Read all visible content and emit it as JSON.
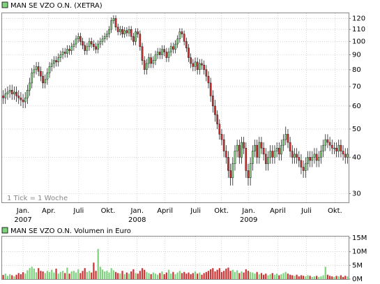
{
  "chart_data": [
    {
      "type": "candlestick",
      "title": "MAN SE VZO O.N. (XETRA)",
      "note": "1 Tick = 1 Woche",
      "open": [
        65,
        64,
        66,
        67,
        68,
        66,
        67,
        65,
        64,
        63,
        62,
        64,
        68,
        72,
        78,
        80,
        82,
        79,
        76,
        72,
        74,
        78,
        82,
        84,
        86,
        85,
        88,
        90,
        92,
        91,
        94,
        93,
        96,
        98,
        102,
        104,
        100,
        97,
        93,
        96,
        100,
        98,
        96,
        94,
        98,
        100,
        102,
        104,
        106,
        110,
        118,
        120,
        112,
        108,
        110,
        106,
        109,
        107,
        110,
        104,
        100,
        108,
        106,
        96,
        86,
        80,
        84,
        88,
        84,
        86,
        90,
        92,
        90,
        94,
        92,
        88,
        92,
        96,
        94,
        98,
        102,
        108,
        106,
        100,
        95,
        88,
        84,
        82,
        85,
        80,
        84,
        83,
        80,
        76,
        72,
        65,
        60,
        56,
        52,
        48,
        46,
        42,
        40,
        36,
        34,
        38,
        42,
        44,
        40,
        45,
        43,
        36,
        34,
        38,
        42,
        44,
        40,
        45,
        43,
        41,
        38,
        40,
        42,
        40,
        42,
        43,
        41,
        44,
        46,
        48,
        45,
        42,
        40,
        41,
        40,
        39,
        37,
        36,
        38,
        40,
        39,
        40,
        41,
        39,
        40,
        42,
        44,
        46,
        45,
        44,
        43,
        43,
        42,
        44,
        42,
        41,
        40
      ],
      "high": [
        68,
        69,
        70,
        71,
        71,
        70,
        70,
        68,
        67,
        66,
        67,
        71,
        75,
        81,
        83,
        85,
        85,
        82,
        79,
        77,
        81,
        85,
        87,
        89,
        89,
        91,
        93,
        95,
        95,
        97,
        97,
        99,
        101,
        105,
        107,
        107,
        103,
        100,
        99,
        103,
        103,
        101,
        99,
        101,
        103,
        105,
        107,
        109,
        113,
        121,
        123,
        123,
        115,
        113,
        113,
        112,
        112,
        113,
        113,
        107,
        111,
        111,
        109,
        99,
        89,
        87,
        91,
        91,
        89,
        93,
        95,
        95,
        97,
        97,
        95,
        95,
        99,
        99,
        101,
        105,
        111,
        111,
        109,
        103,
        98,
        91,
        87,
        88,
        88,
        87,
        87,
        86,
        83,
        79,
        75,
        68,
        63,
        58,
        54,
        50,
        48,
        44,
        42,
        38,
        40,
        44,
        46,
        46,
        47,
        47,
        45,
        38,
        40,
        44,
        46,
        46,
        47,
        47,
        45,
        43,
        42,
        44,
        44,
        44,
        45,
        45,
        46,
        48,
        51,
        50,
        47,
        44,
        43,
        43,
        42,
        41,
        39,
        40,
        42,
        42,
        42,
        43,
        43,
        42,
        44,
        46,
        48,
        48,
        47,
        46,
        45,
        45,
        46,
        46,
        44,
        43,
        43
      ],
      "low": [
        61,
        61,
        63,
        64,
        63,
        63,
        62,
        61,
        60,
        59,
        59,
        61,
        65,
        69,
        75,
        77,
        76,
        73,
        69,
        69,
        71,
        75,
        79,
        81,
        82,
        82,
        85,
        87,
        88,
        88,
        90,
        90,
        93,
        95,
        99,
        97,
        94,
        90,
        90,
        93,
        95,
        93,
        91,
        91,
        95,
        97,
        99,
        101,
        103,
        107,
        115,
        109,
        105,
        105,
        103,
        103,
        104,
        104,
        101,
        97,
        97,
        103,
        93,
        83,
        77,
        77,
        81,
        81,
        81,
        83,
        87,
        87,
        87,
        89,
        85,
        85,
        89,
        91,
        91,
        95,
        99,
        103,
        97,
        92,
        85,
        81,
        79,
        79,
        77,
        77,
        80,
        77,
        73,
        69,
        62,
        57,
        53,
        50,
        46,
        44,
        40,
        38,
        34,
        32,
        32,
        36,
        40,
        38,
        38,
        41,
        34,
        32,
        32,
        36,
        40,
        38,
        38,
        41,
        39,
        36,
        36,
        38,
        38,
        38,
        40,
        39,
        39,
        42,
        44,
        43,
        40,
        38,
        38,
        38,
        37,
        35,
        34,
        34,
        36,
        37,
        37,
        38,
        37,
        37,
        38,
        40,
        42,
        43,
        42,
        41,
        41,
        40,
        40,
        40,
        39,
        38,
        38
      ],
      "close": [
        64,
        66,
        67,
        68,
        66,
        67,
        65,
        64,
        63,
        62,
        64,
        68,
        72,
        78,
        80,
        82,
        79,
        76,
        72,
        74,
        78,
        82,
        84,
        86,
        85,
        88,
        90,
        92,
        91,
        94,
        93,
        96,
        98,
        102,
        104,
        100,
        97,
        93,
        96,
        100,
        98,
        96,
        94,
        98,
        100,
        102,
        104,
        106,
        110,
        118,
        120,
        112,
        108,
        110,
        106,
        109,
        107,
        110,
        104,
        100,
        108,
        106,
        96,
        86,
        80,
        84,
        88,
        84,
        86,
        90,
        92,
        90,
        94,
        92,
        88,
        92,
        96,
        94,
        98,
        102,
        108,
        106,
        100,
        95,
        88,
        84,
        82,
        85,
        80,
        84,
        83,
        80,
        76,
        72,
        65,
        60,
        56,
        52,
        48,
        46,
        42,
        40,
        36,
        34,
        38,
        42,
        44,
        40,
        45,
        43,
        36,
        34,
        38,
        42,
        44,
        40,
        45,
        43,
        41,
        38,
        40,
        42,
        40,
        42,
        43,
        41,
        44,
        46,
        48,
        45,
        42,
        40,
        41,
        40,
        39,
        37,
        36,
        38,
        40,
        39,
        40,
        41,
        39,
        40,
        42,
        44,
        46,
        45,
        44,
        43,
        43,
        42,
        44,
        42,
        41,
        40,
        41
      ],
      "up_color": "#7fd37f",
      "down_color": "#cc3333",
      "xlim": [
        0,
        157
      ],
      "xticks": [
        {
          "value": 9.5,
          "label": "Jan.",
          "year": "2007"
        },
        {
          "value": 21.1,
          "label": "Apr."
        },
        {
          "value": 34.7,
          "label": "Juli"
        },
        {
          "value": 48,
          "label": "Okt."
        },
        {
          "value": 61.2,
          "label": "Jan.",
          "year": "2008"
        },
        {
          "value": 73.8,
          "label": "April"
        },
        {
          "value": 87.7,
          "label": "Juli"
        },
        {
          "value": 99.4,
          "label": "Okt."
        },
        {
          "value": 111.7,
          "label": "Jan.",
          "year": "2009"
        },
        {
          "value": 124.9,
          "label": "April"
        },
        {
          "value": 137.9,
          "label": "Juli"
        },
        {
          "value": 150.8,
          "label": "Okt."
        }
      ],
      "ylim": [
        28,
        125
      ],
      "yticks": [
        30,
        40,
        50,
        60,
        70,
        80,
        90,
        100,
        110,
        120
      ],
      "log_scale": true,
      "grid": true
    },
    {
      "type": "bar",
      "title": "MAN SE VZO O.N. Volumen in Euro",
      "values": [
        1.5,
        2,
        1.2,
        1.8,
        1.4,
        1,
        1.6,
        2.2,
        1.8,
        2.5,
        2,
        3.2,
        4,
        4.5,
        3.8,
        2.5,
        4,
        3,
        2.8,
        2.2,
        3,
        2.6,
        3.4,
        2.4,
        3.8,
        2,
        2.6,
        3,
        2.2,
        4.2,
        2,
        2.8,
        3,
        2.4,
        3.6,
        2.2,
        3,
        4,
        2.6,
        3,
        2.4,
        6,
        3,
        11,
        4.5,
        3.5,
        2.8,
        3,
        2.4,
        4,
        3.2,
        2.6,
        2.2,
        2,
        3,
        1.8,
        2.4,
        2,
        2.8,
        3.6,
        2.2,
        2,
        3,
        4,
        3.4,
        2.6,
        2.2,
        1.8,
        2.4,
        2,
        1.6,
        2.2,
        2.8,
        1.8,
        2.4,
        3.4,
        2,
        2.6,
        1.8,
        2.4,
        3,
        2.2,
        2.6,
        2,
        2.4,
        1.8,
        2.2,
        2.8,
        2,
        2.4,
        1.6,
        2.2,
        2.6,
        3,
        3.6,
        4,
        2.8,
        3.4,
        4,
        2.6,
        3,
        3.8,
        4.2,
        3,
        3.4,
        2.6,
        3.2,
        2.2,
        2.8,
        2.4,
        3.6,
        3,
        2.6,
        2.4,
        2,
        2.6,
        1.8,
        2.2,
        1.6,
        2,
        1.4,
        1.8,
        2.2,
        1.6,
        2,
        1.4,
        1.8,
        2.2,
        2.6,
        2,
        1.6,
        1.4,
        1.2,
        1.6,
        1,
        1.4,
        1.2,
        1,
        1.4,
        1.2,
        0.8,
        1,
        1.2,
        0.8,
        1,
        1.4,
        4.5,
        1.6,
        1.2,
        1,
        0.8,
        1.2,
        1,
        1.4,
        0.8,
        1.2,
        1
      ],
      "ylim": [
        0,
        15.5
      ],
      "yticks": [
        {
          "value": 0,
          "label": "0M"
        },
        {
          "value": 5,
          "label": "5M"
        },
        {
          "value": 10,
          "label": "10M"
        },
        {
          "value": 15,
          "label": "15M"
        }
      ],
      "grid": true
    }
  ]
}
